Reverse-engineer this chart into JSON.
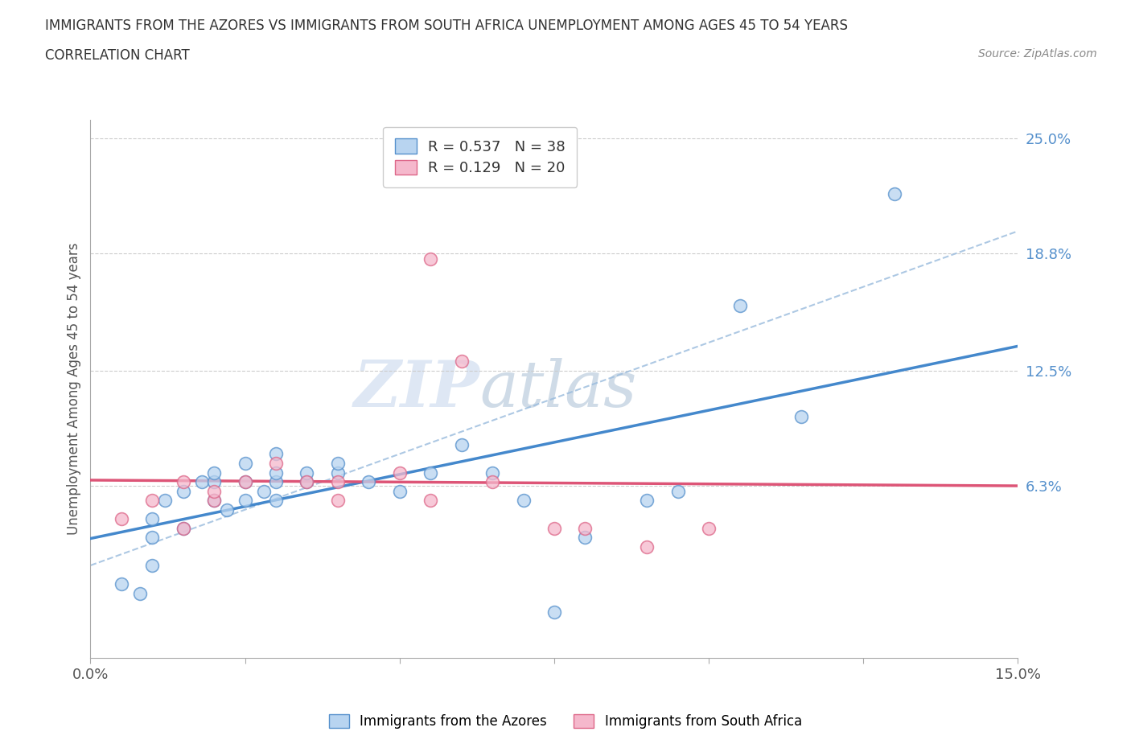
{
  "title_line1": "IMMIGRANTS FROM THE AZORES VS IMMIGRANTS FROM SOUTH AFRICA UNEMPLOYMENT AMONG AGES 45 TO 54 YEARS",
  "title_line2": "CORRELATION CHART",
  "source_text": "Source: ZipAtlas.com",
  "ylabel": "Unemployment Among Ages 45 to 54 years",
  "watermark_zip": "ZIP",
  "watermark_atlas": "atlas",
  "xmin": 0.0,
  "xmax": 0.15,
  "ymin": -0.03,
  "ymax": 0.26,
  "ytick_vals": [
    0.063,
    0.125,
    0.188,
    0.25
  ],
  "ytick_labels": [
    "6.3%",
    "12.5%",
    "18.8%",
    "25.0%"
  ],
  "xtick_vals": [
    0.0,
    0.025,
    0.05,
    0.075,
    0.1,
    0.125,
    0.15
  ],
  "xtick_labels": [
    "0.0%",
    "",
    "",
    "",
    "",
    "",
    "15.0%"
  ],
  "azores_R": 0.537,
  "azores_N": 38,
  "sa_R": 0.129,
  "sa_N": 20,
  "azores_color": "#b8d4f0",
  "sa_color": "#f5b8cc",
  "azores_edge_color": "#5590cc",
  "sa_edge_color": "#dd6688",
  "azores_line_color": "#4488cc",
  "sa_line_color": "#dd5577",
  "dash_line_color": "#99bbdd",
  "legend_label_azores": "Immigrants from the Azores",
  "legend_label_sa": "Immigrants from South Africa",
  "azores_x": [
    0.005,
    0.008,
    0.01,
    0.01,
    0.01,
    0.012,
    0.015,
    0.015,
    0.018,
    0.02,
    0.02,
    0.02,
    0.022,
    0.025,
    0.025,
    0.025,
    0.028,
    0.03,
    0.03,
    0.03,
    0.03,
    0.035,
    0.035,
    0.04,
    0.04,
    0.045,
    0.05,
    0.055,
    0.06,
    0.065,
    0.07,
    0.075,
    0.08,
    0.09,
    0.095,
    0.105,
    0.115,
    0.13
  ],
  "azores_y": [
    0.01,
    0.005,
    0.02,
    0.035,
    0.045,
    0.055,
    0.04,
    0.06,
    0.065,
    0.055,
    0.065,
    0.07,
    0.05,
    0.055,
    0.065,
    0.075,
    0.06,
    0.055,
    0.065,
    0.07,
    0.08,
    0.065,
    0.07,
    0.07,
    0.075,
    0.065,
    0.06,
    0.07,
    0.085,
    0.07,
    0.055,
    -0.005,
    0.035,
    0.055,
    0.06,
    0.16,
    0.1,
    0.22
  ],
  "sa_x": [
    0.005,
    0.01,
    0.015,
    0.015,
    0.02,
    0.02,
    0.025,
    0.03,
    0.035,
    0.04,
    0.04,
    0.05,
    0.055,
    0.055,
    0.06,
    0.065,
    0.075,
    0.08,
    0.09,
    0.1
  ],
  "sa_y": [
    0.045,
    0.055,
    0.04,
    0.065,
    0.055,
    0.06,
    0.065,
    0.075,
    0.065,
    0.065,
    0.055,
    0.07,
    0.185,
    0.055,
    0.13,
    0.065,
    0.04,
    0.04,
    0.03,
    0.04
  ]
}
